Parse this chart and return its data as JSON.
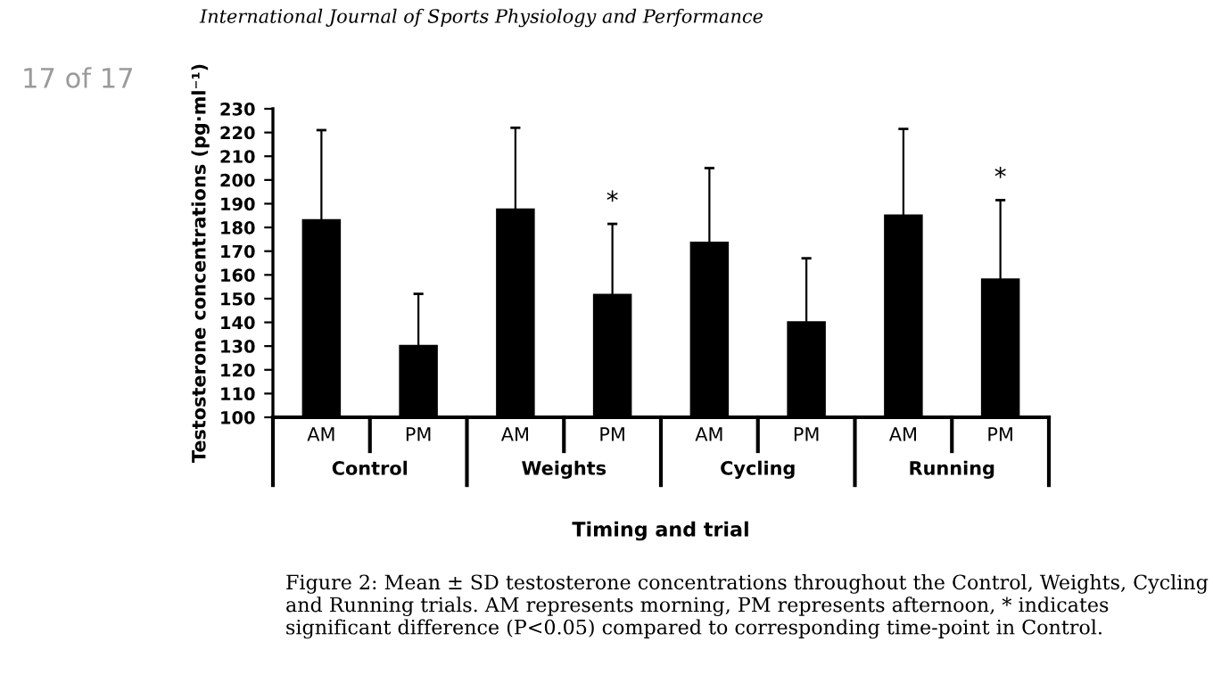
{
  "chart_data": {
    "type": "bar",
    "ylabel": "Testosterone concentrations (pg·ml⁻¹)",
    "xlabel": "Timing and trial",
    "categories": [
      "AM",
      "PM",
      "AM",
      "PM",
      "AM",
      "PM",
      "AM",
      "PM"
    ],
    "values": [
      183.5,
      130.5,
      188,
      152,
      174,
      140.5,
      185.5,
      158.5
    ],
    "errors": [
      37.5,
      21.5,
      34,
      29.5,
      31,
      26.5,
      36,
      33
    ],
    "color": "#000000",
    "ylim": [
      100,
      230
    ],
    "yticks": [
      100,
      110,
      120,
      130,
      140,
      150,
      160,
      170,
      180,
      190,
      200,
      210,
      220,
      230
    ],
    "annotations": [
      "Control",
      "Weights",
      "Cycling",
      "Running",
      "International Journal of Sports Physiology and Performance",
      "17 of 17",
      "Figure 2: Mean ± SD testosterone concentrations throughout the Control, Weights, Cycling and Running trials. AM represents morning, PM represents afternoon, * indicates significant difference (P<0.05) compared to corresponding time-point in Control.",
      "*",
      "*"
    ],
    "grid": false,
    "legend": false
  }
}
